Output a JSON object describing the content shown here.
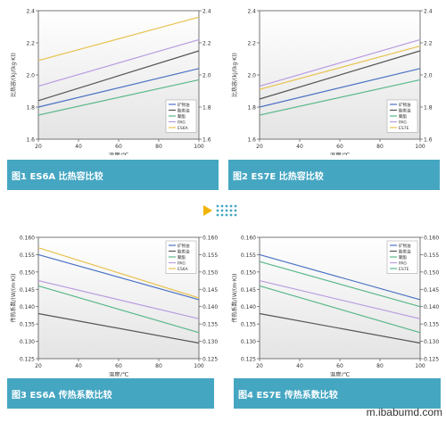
{
  "charts": [
    {
      "id": "c1",
      "type": "line",
      "caption": "图1 ES6A 比热容比较",
      "xlabel": "温度/℃",
      "ylabel": "比热容/(kJ/(kg·K))",
      "xlim": [
        20,
        100
      ],
      "ylim": [
        1.6,
        2.4
      ],
      "yticks": [
        "1.6",
        "1.8",
        "2.0",
        "2.2",
        "2.4"
      ],
      "xticks": [
        "20",
        "40",
        "60",
        "80",
        "100"
      ],
      "series": [
        {
          "name": "矿物油",
          "color": "#4a72c4",
          "x": [
            20,
            100
          ],
          "y": [
            1.8,
            2.04
          ]
        },
        {
          "name": "酯类油",
          "color": "#555555",
          "x": [
            20,
            100
          ],
          "y": [
            1.84,
            2.15
          ]
        },
        {
          "name": "聚酯",
          "color": "#5ab88a",
          "x": [
            20,
            100
          ],
          "y": [
            1.75,
            1.97
          ]
        },
        {
          "name": "PAG",
          "color": "#b99be0",
          "x": [
            20,
            100
          ],
          "y": [
            1.93,
            2.22
          ]
        },
        {
          "name": "ES6A",
          "color": "#e8c24e",
          "x": [
            20,
            100
          ],
          "y": [
            2.09,
            2.36
          ]
        }
      ]
    },
    {
      "id": "c2",
      "type": "line",
      "caption": "图2 ES7E 比热容比较",
      "xlabel": "温度/℃",
      "ylabel": "比热容/(kJ/(kg·K))",
      "xlim": [
        20,
        100
      ],
      "ylim": [
        1.6,
        2.4
      ],
      "yticks": [
        "1.6",
        "1.8",
        "2.0",
        "2.2",
        "2.4"
      ],
      "xticks": [
        "20",
        "40",
        "60",
        "80",
        "100"
      ],
      "series": [
        {
          "name": "矿物油",
          "color": "#4a72c4",
          "x": [
            20,
            100
          ],
          "y": [
            1.8,
            2.04
          ]
        },
        {
          "name": "酯类油",
          "color": "#555555",
          "x": [
            20,
            100
          ],
          "y": [
            1.85,
            2.15
          ]
        },
        {
          "name": "聚酯",
          "color": "#5ab88a",
          "x": [
            20,
            100
          ],
          "y": [
            1.75,
            1.97
          ]
        },
        {
          "name": "PAG",
          "color": "#b99be0",
          "x": [
            20,
            100
          ],
          "y": [
            1.93,
            2.22
          ]
        },
        {
          "name": "ES7E",
          "color": "#e8c24e",
          "x": [
            20,
            100
          ],
          "y": [
            1.91,
            2.18
          ]
        }
      ]
    },
    {
      "id": "c3",
      "type": "line",
      "caption": "图3 ES6A 传热系数比较",
      "xlabel": "温度/℃",
      "ylabel": "传热系数/(W/(m·K))",
      "xlim": [
        20,
        100
      ],
      "ylim": [
        0.125,
        0.16
      ],
      "yticks": [
        "0.125",
        "0.130",
        "0.135",
        "0.140",
        "0.145",
        "0.150",
        "0.155",
        "0.160"
      ],
      "xticks": [
        "20",
        "40",
        "60",
        "80",
        "100"
      ],
      "series": [
        {
          "name": "矿物油",
          "color": "#4a72c4",
          "x": [
            20,
            100
          ],
          "y": [
            0.155,
            0.142
          ]
        },
        {
          "name": "酯类油",
          "color": "#555555",
          "x": [
            20,
            100
          ],
          "y": [
            0.138,
            0.1295
          ]
        },
        {
          "name": "聚酯",
          "color": "#5ab88a",
          "x": [
            20,
            100
          ],
          "y": [
            0.146,
            0.1325
          ]
        },
        {
          "name": "PAG",
          "color": "#b99be0",
          "x": [
            20,
            100
          ],
          "y": [
            0.1475,
            0.1365
          ]
        },
        {
          "name": "ES6A",
          "color": "#e8c24e",
          "x": [
            20,
            100
          ],
          "y": [
            0.157,
            0.1425
          ]
        }
      ]
    },
    {
      "id": "c4",
      "type": "line",
      "caption": "图4 ES7E 传热系数比较",
      "xlabel": "温度/℃",
      "ylabel": "传热系数/(W/(m·K))",
      "xlim": [
        20,
        100
      ],
      "ylim": [
        0.125,
        0.16
      ],
      "yticks": [
        "0.125",
        "0.130",
        "0.135",
        "0.140",
        "0.145",
        "0.150",
        "0.155",
        "0.160"
      ],
      "xticks": [
        "20",
        "40",
        "60",
        "80",
        "100"
      ],
      "series": [
        {
          "name": "矿物油",
          "color": "#4a72c4",
          "x": [
            20,
            100
          ],
          "y": [
            0.155,
            0.142
          ]
        },
        {
          "name": "酯类油",
          "color": "#555555",
          "x": [
            20,
            100
          ],
          "y": [
            0.138,
            0.1295
          ]
        },
        {
          "name": "聚酯",
          "color": "#5ab88a",
          "x": [
            20,
            100
          ],
          "y": [
            0.146,
            0.1325
          ]
        },
        {
          "name": "PAG",
          "color": "#b99be0",
          "x": [
            20,
            100
          ],
          "y": [
            0.1475,
            0.1365
          ]
        },
        {
          "name": "ES7E",
          "color": "#5ab88a",
          "x": [
            20,
            100
          ],
          "y": [
            0.153,
            0.14
          ]
        }
      ]
    }
  ],
  "watermark": "m.ibabumd.com",
  "colors": {
    "caption_bg": "#45a6c2",
    "accent": "#f0b400"
  }
}
